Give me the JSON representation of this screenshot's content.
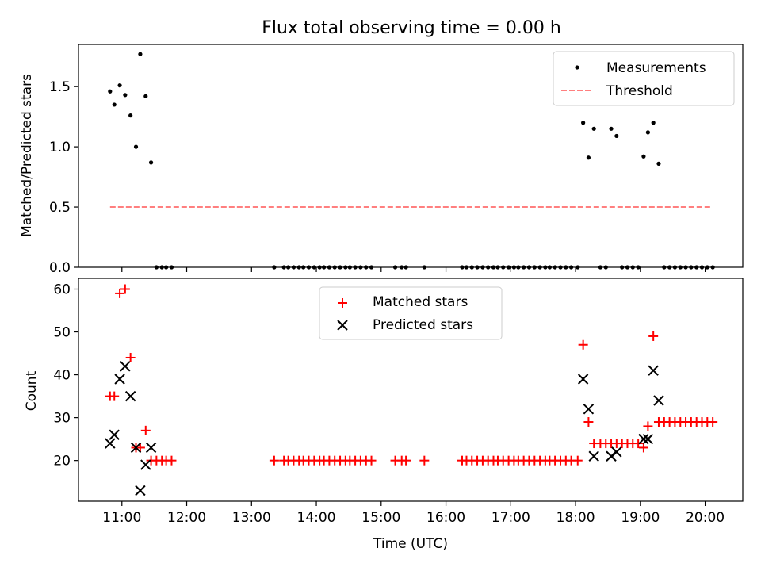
{
  "figure": {
    "title": "Flux total observing time = 0.00 h"
  },
  "chart_data": [
    {
      "type": "scatter",
      "title": "Flux total observing time = 0.00 h",
      "xlabel": "",
      "ylabel": "Matched/Predicted stars",
      "xlim": [
        10.33,
        20.58
      ],
      "ylim": [
        0,
        1.85
      ],
      "xticks": [
        11,
        12,
        13,
        14,
        15,
        16,
        17,
        18,
        19,
        20
      ],
      "xticklabels_shown": false,
      "yticks": [
        0.0,
        0.5,
        1.0,
        1.5
      ],
      "yticklabels": [
        "0.0",
        "0.5",
        "1.0",
        "1.5"
      ],
      "legend_position": "top-right",
      "grid": false,
      "series": [
        {
          "name": "Measurements",
          "marker": "dot",
          "color": "#000000",
          "points": [
            [
              10.817,
              1.46
            ],
            [
              10.883,
              1.35
            ],
            [
              10.967,
              1.51
            ],
            [
              11.05,
              1.43
            ],
            [
              11.133,
              1.26
            ],
            [
              11.217,
              1.0
            ],
            [
              11.283,
              1.77
            ],
            [
              11.367,
              1.42
            ],
            [
              11.45,
              0.87
            ],
            [
              11.533,
              0
            ],
            [
              11.617,
              0
            ],
            [
              11.683,
              0
            ],
            [
              11.767,
              0
            ],
            [
              13.35,
              0
            ],
            [
              13.5,
              0
            ],
            [
              13.567,
              0
            ],
            [
              13.65,
              0
            ],
            [
              13.733,
              0
            ],
            [
              13.8,
              0
            ],
            [
              13.883,
              0
            ],
            [
              13.967,
              0
            ],
            [
              14.05,
              0
            ],
            [
              14.117,
              0
            ],
            [
              14.2,
              0
            ],
            [
              14.283,
              0
            ],
            [
              14.367,
              0
            ],
            [
              14.45,
              0
            ],
            [
              14.517,
              0
            ],
            [
              14.6,
              0
            ],
            [
              14.683,
              0
            ],
            [
              14.767,
              0
            ],
            [
              14.85,
              0
            ],
            [
              15.217,
              0
            ],
            [
              15.317,
              0
            ],
            [
              15.383,
              0
            ],
            [
              15.667,
              0
            ],
            [
              16.25,
              0
            ],
            [
              16.317,
              0
            ],
            [
              16.4,
              0
            ],
            [
              16.483,
              0
            ],
            [
              16.567,
              0
            ],
            [
              16.65,
              0
            ],
            [
              16.733,
              0
            ],
            [
              16.8,
              0
            ],
            [
              16.883,
              0
            ],
            [
              16.967,
              0
            ],
            [
              17.05,
              0
            ],
            [
              17.117,
              0
            ],
            [
              17.2,
              0
            ],
            [
              17.283,
              0
            ],
            [
              17.367,
              0
            ],
            [
              17.45,
              0
            ],
            [
              17.533,
              0
            ],
            [
              17.6,
              0
            ],
            [
              17.683,
              0
            ],
            [
              17.767,
              0
            ],
            [
              17.85,
              0
            ],
            [
              17.933,
              0
            ],
            [
              18.033,
              0
            ],
            [
              18.117,
              1.2
            ],
            [
              18.2,
              0.91
            ],
            [
              18.283,
              1.15
            ],
            [
              18.383,
              0
            ],
            [
              18.467,
              0
            ],
            [
              18.55,
              1.15
            ],
            [
              18.633,
              1.09
            ],
            [
              18.717,
              0
            ],
            [
              18.8,
              0
            ],
            [
              18.883,
              0
            ],
            [
              18.967,
              0
            ],
            [
              19.05,
              0.92
            ],
            [
              19.117,
              1.12
            ],
            [
              19.2,
              1.2
            ],
            [
              19.283,
              0.86
            ],
            [
              19.367,
              0
            ],
            [
              19.45,
              0
            ],
            [
              19.533,
              0
            ],
            [
              19.617,
              0
            ],
            [
              19.7,
              0
            ],
            [
              19.783,
              0
            ],
            [
              19.867,
              0
            ],
            [
              19.95,
              0
            ],
            [
              20.033,
              0
            ],
            [
              20.117,
              0
            ]
          ]
        },
        {
          "name": "Threshold",
          "marker": "dashed-line",
          "color": "#ff7f7f",
          "points": [
            [
              10.817,
              0.5
            ],
            [
              20.083,
              0.5
            ]
          ]
        }
      ]
    },
    {
      "type": "scatter",
      "title": "",
      "xlabel": "Time (UTC)",
      "ylabel": "Count",
      "xlim": [
        10.33,
        20.58
      ],
      "ylim": [
        10.5,
        62.5
      ],
      "xticks": [
        11,
        12,
        13,
        14,
        15,
        16,
        17,
        18,
        19,
        20
      ],
      "xticklabels": [
        "11:00",
        "12:00",
        "13:00",
        "14:00",
        "15:00",
        "16:00",
        "17:00",
        "18:00",
        "19:00",
        "20:00"
      ],
      "yticks": [
        20,
        30,
        40,
        50,
        60
      ],
      "yticklabels": [
        "20",
        "30",
        "40",
        "50",
        "60"
      ],
      "legend_position": "top-center",
      "grid": false,
      "series": [
        {
          "name": "Matched stars",
          "marker": "plus",
          "color": "#ff0000",
          "points": [
            [
              10.817,
              35
            ],
            [
              10.883,
              35
            ],
            [
              10.967,
              59
            ],
            [
              11.05,
              60
            ],
            [
              11.133,
              44
            ],
            [
              11.217,
              23
            ],
            [
              11.283,
              23
            ],
            [
              11.367,
              27
            ],
            [
              11.45,
              20
            ],
            [
              11.533,
              20
            ],
            [
              11.617,
              20
            ],
            [
              11.683,
              20
            ],
            [
              11.767,
              20
            ],
            [
              13.35,
              20
            ],
            [
              13.5,
              20
            ],
            [
              13.567,
              20
            ],
            [
              13.65,
              20
            ],
            [
              13.733,
              20
            ],
            [
              13.8,
              20
            ],
            [
              13.883,
              20
            ],
            [
              13.967,
              20
            ],
            [
              14.05,
              20
            ],
            [
              14.117,
              20
            ],
            [
              14.2,
              20
            ],
            [
              14.283,
              20
            ],
            [
              14.367,
              20
            ],
            [
              14.45,
              20
            ],
            [
              14.517,
              20
            ],
            [
              14.6,
              20
            ],
            [
              14.683,
              20
            ],
            [
              14.767,
              20
            ],
            [
              14.85,
              20
            ],
            [
              15.217,
              20
            ],
            [
              15.317,
              20
            ],
            [
              15.383,
              20
            ],
            [
              15.667,
              20
            ],
            [
              16.25,
              20
            ],
            [
              16.317,
              20
            ],
            [
              16.4,
              20
            ],
            [
              16.483,
              20
            ],
            [
              16.567,
              20
            ],
            [
              16.65,
              20
            ],
            [
              16.733,
              20
            ],
            [
              16.8,
              20
            ],
            [
              16.883,
              20
            ],
            [
              16.967,
              20
            ],
            [
              17.05,
              20
            ],
            [
              17.117,
              20
            ],
            [
              17.2,
              20
            ],
            [
              17.283,
              20
            ],
            [
              17.367,
              20
            ],
            [
              17.45,
              20
            ],
            [
              17.533,
              20
            ],
            [
              17.6,
              20
            ],
            [
              17.683,
              20
            ],
            [
              17.767,
              20
            ],
            [
              17.85,
              20
            ],
            [
              17.933,
              20
            ],
            [
              18.033,
              20
            ],
            [
              18.117,
              47
            ],
            [
              18.2,
              29
            ],
            [
              18.283,
              24
            ],
            [
              18.383,
              24
            ],
            [
              18.467,
              24
            ],
            [
              18.55,
              24
            ],
            [
              18.633,
              24
            ],
            [
              18.717,
              24
            ],
            [
              18.8,
              24
            ],
            [
              18.883,
              24
            ],
            [
              18.967,
              24
            ],
            [
              19.05,
              23
            ],
            [
              19.117,
              28
            ],
            [
              19.2,
              49
            ],
            [
              19.283,
              29
            ],
            [
              19.367,
              29
            ],
            [
              19.45,
              29
            ],
            [
              19.533,
              29
            ],
            [
              19.617,
              29
            ],
            [
              19.7,
              29
            ],
            [
              19.783,
              29
            ],
            [
              19.867,
              29
            ],
            [
              19.95,
              29
            ],
            [
              20.033,
              29
            ],
            [
              20.117,
              29
            ]
          ]
        },
        {
          "name": "Predicted stars",
          "marker": "x",
          "color": "#000000",
          "points": [
            [
              10.817,
              24
            ],
            [
              10.883,
              26
            ],
            [
              10.967,
              39
            ],
            [
              11.05,
              42
            ],
            [
              11.133,
              35
            ],
            [
              11.217,
              23
            ],
            [
              11.283,
              13
            ],
            [
              11.367,
              19
            ],
            [
              11.45,
              23
            ],
            [
              18.117,
              39
            ],
            [
              18.2,
              32
            ],
            [
              18.283,
              21
            ],
            [
              18.55,
              21
            ],
            [
              18.633,
              22
            ],
            [
              19.05,
              25
            ],
            [
              19.117,
              25
            ],
            [
              19.2,
              41
            ],
            [
              19.283,
              34
            ]
          ]
        }
      ]
    }
  ]
}
